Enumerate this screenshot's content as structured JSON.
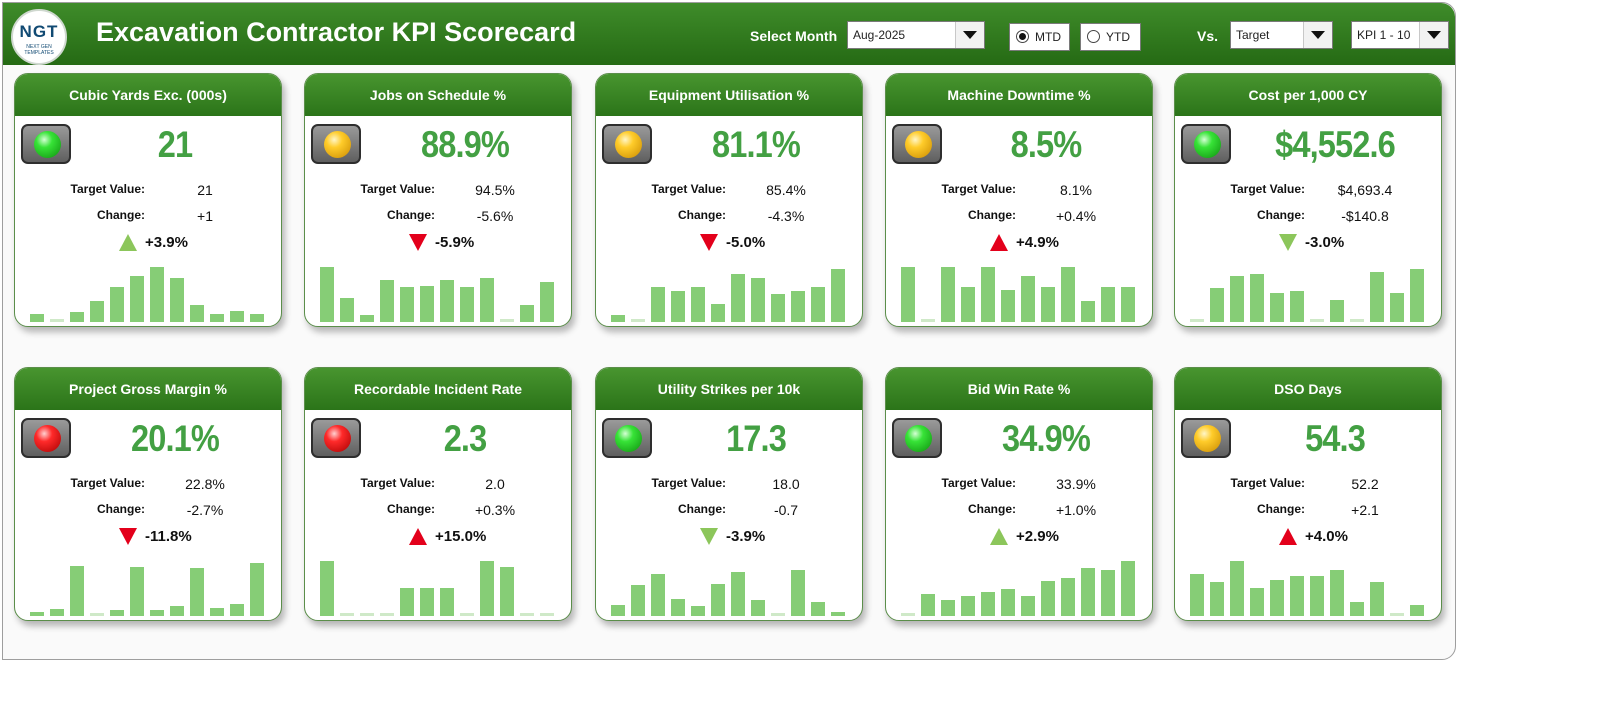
{
  "header": {
    "logo_text": "NGT",
    "logo_subtext": "NEXT GEN TEMPLATES",
    "title": "Excavation Contractor KPI Scorecard",
    "select_month_label": "Select Month",
    "month_value": "Aug-2025",
    "mtd_label": "MTD",
    "ytd_label": "YTD",
    "mode_selected": "MTD",
    "vs_label": "Vs.",
    "compare_value": "Target",
    "kpi_range_value": "KPI 1 - 10"
  },
  "cards": [
    {
      "title": "Cubic Yards Exc. (000s)",
      "status": "green",
      "value": "21",
      "target_label": "Target Value:",
      "target": "21",
      "change_label": "Change:",
      "change": "+1",
      "direction": "up",
      "arrow_color": "#8cc65b",
      "change_pct": "+3.9%",
      "bars": [
        0.15,
        0.05,
        0.18,
        0.38,
        0.62,
        0.82,
        0.98,
        0.78,
        0.3,
        0.15,
        0.2,
        0.15
      ]
    },
    {
      "title": "Jobs on Schedule %",
      "status": "amber",
      "value": "88.9%",
      "target_label": "Target Value:",
      "target": "94.5%",
      "change_label": "Change:",
      "change": "-5.6%",
      "direction": "down",
      "arrow_color": "#e3001b",
      "change_pct": "-5.9%",
      "bars": [
        0.98,
        0.42,
        0.12,
        0.75,
        0.62,
        0.65,
        0.75,
        0.62,
        0.78,
        0.05,
        0.3,
        0.72
      ]
    },
    {
      "title": "Equipment Utilisation %",
      "status": "amber",
      "value": "81.1%",
      "target_label": "Target Value:",
      "target": "85.4%",
      "change_label": "Change:",
      "change": "-4.3%",
      "direction": "down",
      "arrow_color": "#e3001b",
      "change_pct": "-5.0%",
      "bars": [
        0.12,
        0.05,
        0.62,
        0.55,
        0.62,
        0.32,
        0.85,
        0.78,
        0.5,
        0.55,
        0.62,
        0.95
      ]
    },
    {
      "title": "Machine Downtime %",
      "status": "amber",
      "value": "8.5%",
      "target_label": "Target Value:",
      "target": "8.1%",
      "change_label": "Change:",
      "change": "+0.4%",
      "direction": "up",
      "arrow_color": "#e3001b",
      "change_pct": "+4.9%",
      "bars": [
        0.98,
        0.05,
        0.98,
        0.62,
        0.98,
        0.58,
        0.82,
        0.62,
        0.98,
        0.38,
        0.62,
        0.62
      ]
    },
    {
      "title": "Cost per 1,000 CY",
      "status": "green",
      "value": "$4,552.6",
      "target_label": "Target Value:",
      "target": "$4,693.4",
      "change_label": "Change:",
      "change": "-$140.8",
      "direction": "down",
      "arrow_color": "#8cc65b",
      "change_pct": "-3.0%",
      "bars": [
        0.05,
        0.6,
        0.82,
        0.85,
        0.52,
        0.55,
        0.05,
        0.4,
        0.05,
        0.9,
        0.52,
        0.95
      ]
    },
    {
      "title": "Project Gross Margin %",
      "status": "red",
      "value": "20.1%",
      "target_label": "Target Value:",
      "target": "22.8%",
      "change_label": "Change:",
      "change": "-2.7%",
      "direction": "down",
      "arrow_color": "#e3001b",
      "change_pct": "-11.8%",
      "bars": [
        0.08,
        0.12,
        0.9,
        0.05,
        0.1,
        0.88,
        0.1,
        0.18,
        0.85,
        0.15,
        0.22,
        0.95
      ]
    },
    {
      "title": "Recordable Incident Rate",
      "status": "red",
      "value": "2.3",
      "target_label": "Target Value:",
      "target": "2.0",
      "change_label": "Change:",
      "change": "+0.3%",
      "direction": "up",
      "arrow_color": "#e3001b",
      "change_pct": "+15.0%",
      "bars": [
        0.98,
        0.05,
        0.05,
        0.05,
        0.5,
        0.5,
        0.5,
        0.05,
        0.98,
        0.88,
        0.05,
        0.05
      ]
    },
    {
      "title": "Utility Strikes per 10k",
      "status": "green",
      "value": "17.3",
      "target_label": "Target Value:",
      "target": "18.0",
      "change_label": "Change:",
      "change": "-0.7",
      "direction": "down",
      "arrow_color": "#8cc65b",
      "change_pct": "-3.9%",
      "bars": [
        0.2,
        0.55,
        0.75,
        0.3,
        0.18,
        0.58,
        0.78,
        0.28,
        0.05,
        0.82,
        0.25,
        0.08
      ]
    },
    {
      "title": "Bid Win Rate %",
      "status": "green",
      "value": "34.9%",
      "target_label": "Target Value:",
      "target": "33.9%",
      "change_label": "Change:",
      "change": "+1.0%",
      "direction": "up",
      "arrow_color": "#8cc65b",
      "change_pct": "+2.9%",
      "bars": [
        0.05,
        0.4,
        0.28,
        0.35,
        0.42,
        0.48,
        0.35,
        0.62,
        0.68,
        0.85,
        0.82,
        0.98
      ]
    },
    {
      "title": "DSO Days",
      "status": "amber",
      "value": "54.3",
      "target_label": "Target Value:",
      "target": "52.2",
      "change_label": "Change:",
      "change": "+2.1",
      "direction": "up",
      "arrow_color": "#e3001b",
      "change_pct": "+4.0%",
      "bars": [
        0.75,
        0.6,
        0.98,
        0.5,
        0.65,
        0.72,
        0.72,
        0.82,
        0.25,
        0.6,
        0.05,
        0.2
      ]
    }
  ]
}
